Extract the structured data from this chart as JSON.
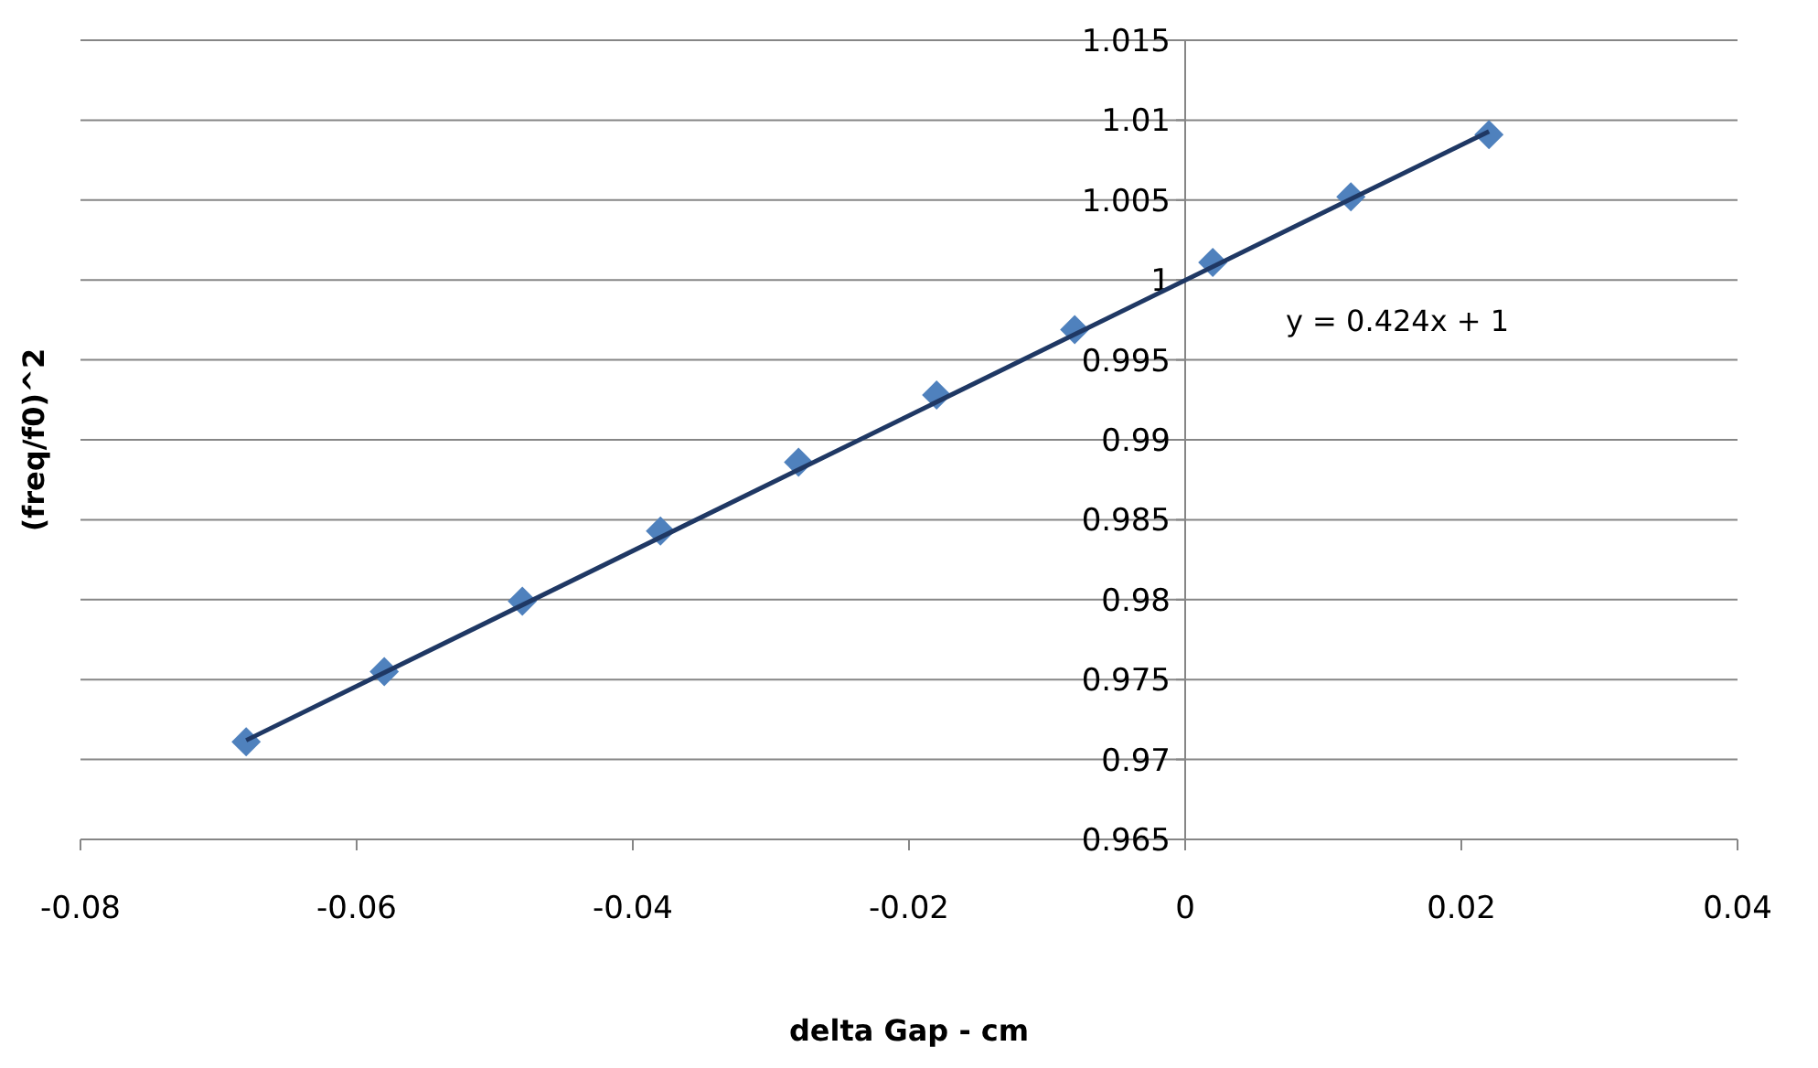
{
  "chart_data": {
    "type": "scatter",
    "xlabel": "delta Gap - cm",
    "ylabel": "(freq/f0)^2",
    "xlim": [
      -0.08,
      0.04
    ],
    "xticks": [
      -0.08,
      -0.06,
      -0.04,
      -0.02,
      0,
      0.02,
      0.04
    ],
    "ylim": [
      0.965,
      1.015
    ],
    "yticks": [
      0.965,
      0.97,
      0.975,
      0.98,
      0.985,
      0.99,
      0.995,
      1,
      1.005,
      1.01,
      1.015
    ],
    "grid": "y",
    "series": [
      {
        "color": "#4f81bd",
        "marker": "diamond",
        "x": [
          -0.068,
          -0.058,
          -0.048,
          -0.038,
          -0.028,
          -0.018,
          -0.008,
          0.002,
          0.012,
          0.022
        ],
        "values": [
          0.9711,
          0.9755,
          0.9799,
          0.9843,
          0.9886,
          0.9928,
          0.9969,
          1.0011,
          1.0052,
          1.0091
        ]
      },
      {
        "type": "line",
        "color": "#1f3864",
        "marker": "none",
        "line_style": "solid",
        "x": [
          -0.068,
          0.022
        ],
        "values": [
          0.9712,
          1.0093
        ]
      }
    ],
    "annotations": [
      "y = 0.424x + 1"
    ]
  }
}
